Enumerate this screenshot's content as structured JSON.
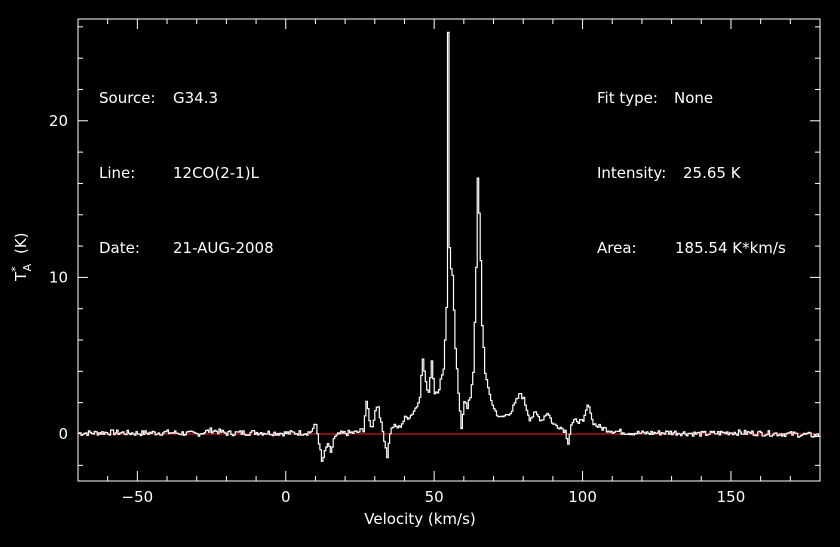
{
  "info": {
    "source_label": "Source:",
    "source_value": "G34.3",
    "line_label": "Line:",
    "line_value": "12CO(2-1)L",
    "date_label": "Date:",
    "date_value": "21-AUG-2008",
    "fit_label": "Fit type:",
    "fit_value": "None",
    "intensity_label": "Intensity:",
    "intensity_value": "25.65 K",
    "area_label": "Area:",
    "area_value": "185.54 K*km/s"
  },
  "colors": {
    "background": "#000000",
    "axes": "#ffffff",
    "trace": "#ffffff",
    "baseline": "#ff2020"
  },
  "chart_data": {
    "type": "line",
    "xlabel": "Velocity (km/s)",
    "ylabel_main": "T",
    "ylabel_sup": "*",
    "ylabel_sub": "A",
    "ylabel_unit": "(K)",
    "xlim": [
      -70,
      180
    ],
    "ylim": [
      -3,
      26.5
    ],
    "xticks": [
      -50,
      0,
      50,
      100,
      150
    ],
    "yticks": [
      0,
      10,
      20
    ],
    "baseline_y": 0,
    "series": [
      {
        "x": [
          -70,
          -60,
          -50,
          -40,
          -30,
          -25,
          -20,
          -10,
          0,
          8,
          10,
          11,
          12,
          13,
          14,
          15,
          16,
          18,
          20,
          24,
          26,
          27,
          28,
          29,
          30,
          31,
          32,
          33,
          34,
          35,
          36,
          38,
          40,
          42,
          44,
          45,
          46,
          47,
          48,
          49,
          50,
          51,
          52,
          53,
          54,
          54.5,
          55,
          55.5,
          56,
          57,
          58,
          59,
          60,
          61,
          62,
          63,
          64,
          64.5,
          65,
          65.5,
          66,
          67,
          68,
          70,
          72,
          74,
          76,
          78,
          79,
          80,
          82,
          84,
          86,
          88,
          90,
          92,
          94,
          95,
          96,
          98,
          100,
          101,
          102,
          103,
          104,
          106,
          110,
          115,
          120,
          130,
          140,
          150,
          160,
          170,
          180
        ],
        "y": [
          0.05,
          0.1,
          0.05,
          0.1,
          0.0,
          0.25,
          0.05,
          0.1,
          0.05,
          0.1,
          0.6,
          -0.5,
          -1.8,
          -1.2,
          -0.6,
          -1.3,
          -0.3,
          0.0,
          0.05,
          0.1,
          0.3,
          2.1,
          0.8,
          0.4,
          1.6,
          1.8,
          0.6,
          -0.3,
          -1.4,
          0.1,
          0.5,
          0.4,
          1.0,
          1.2,
          1.8,
          2.5,
          4.8,
          3.2,
          2.7,
          4.7,
          2.7,
          2.5,
          3.5,
          4.2,
          8.0,
          25.65,
          12.0,
          10.5,
          10.0,
          5.5,
          2.5,
          0.5,
          2.2,
          1.6,
          2.4,
          4.0,
          10.5,
          16.3,
          14.0,
          11.0,
          7.0,
          4.0,
          2.8,
          1.6,
          1.0,
          1.2,
          1.5,
          2.3,
          2.6,
          2.2,
          1.0,
          1.3,
          0.9,
          1.4,
          0.6,
          0.5,
          0.2,
          -0.5,
          0.6,
          0.9,
          0.7,
          1.5,
          1.9,
          0.9,
          0.6,
          0.4,
          0.2,
          0.1,
          0.05,
          0.1,
          0.0,
          0.1,
          0.05,
          0.0,
          -0.1
        ]
      }
    ]
  }
}
